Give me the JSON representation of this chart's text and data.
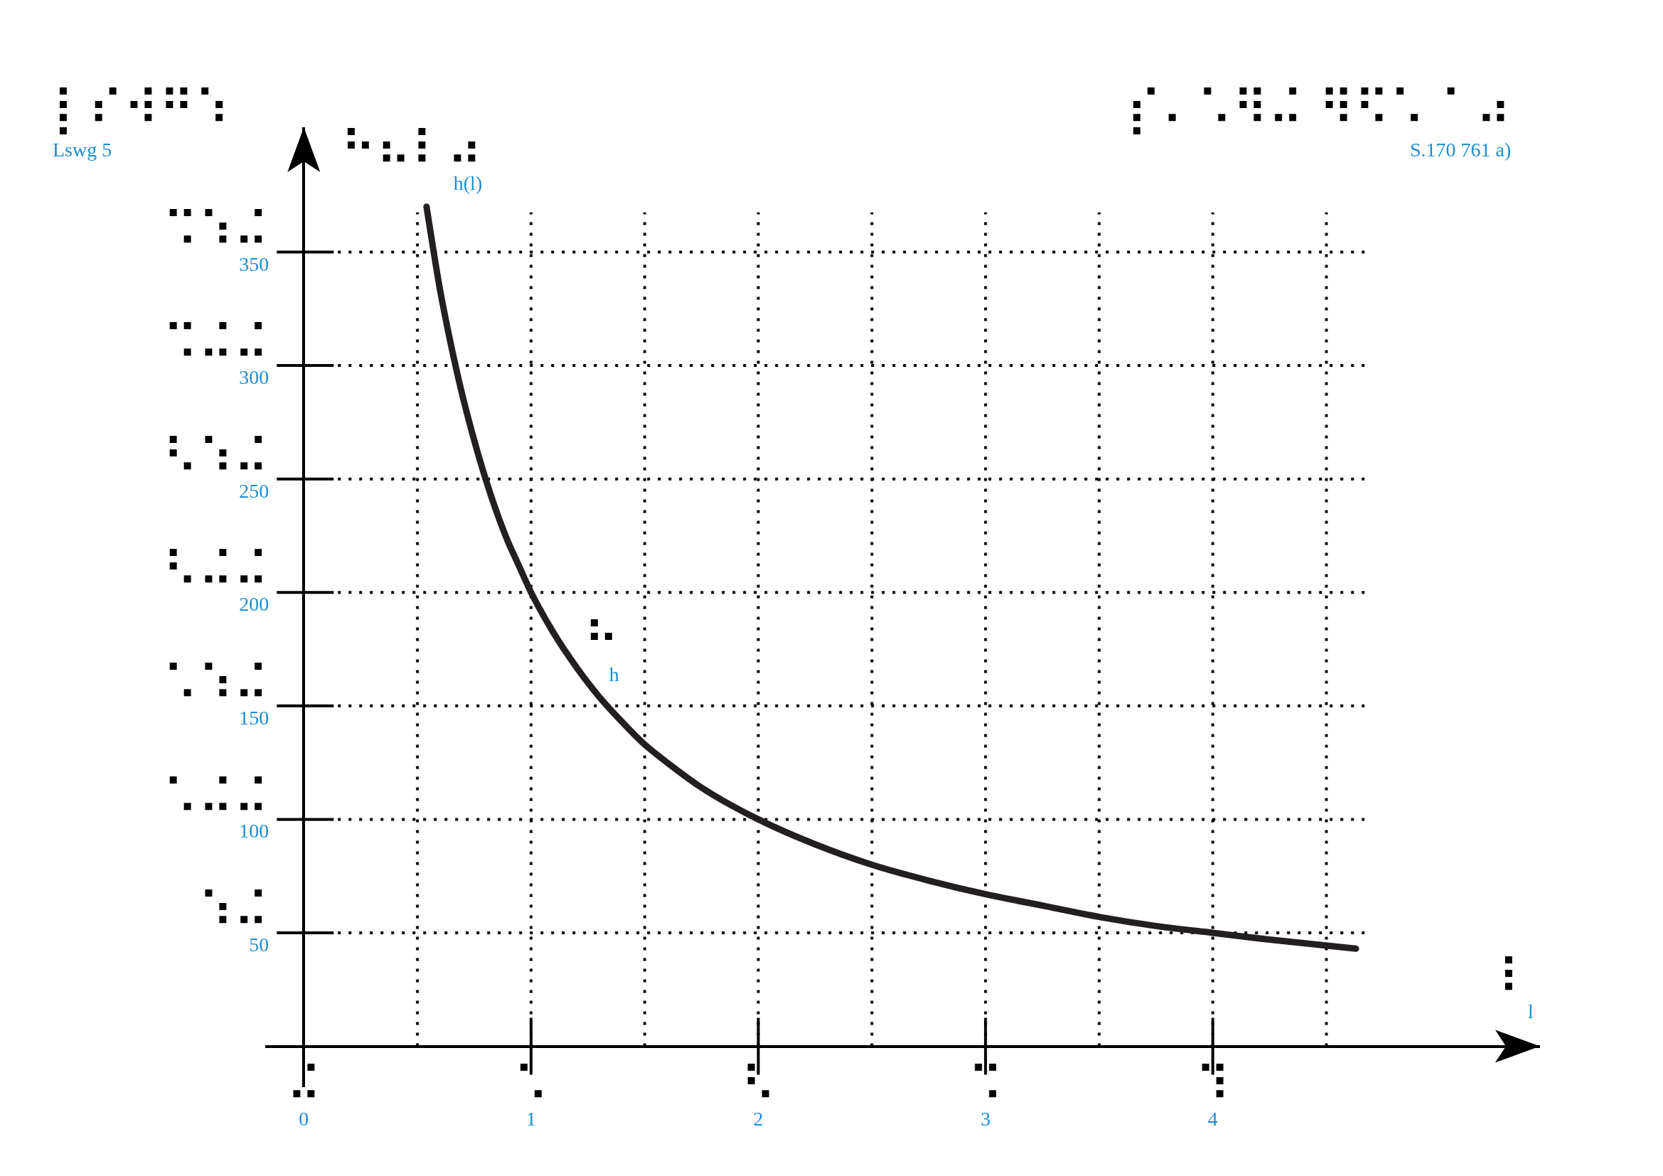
{
  "chart_data": {
    "type": "line",
    "annotations": [
      "⡇⠎⠺⠛⠱\nLswg 5",
      "⡎⠄⠡⠻⠬ ⠻⠫⠡ ⠁⠴\nS.170 761 a)"
    ],
    "xlabel": "⠇\nl",
    "ylabel": "⠓⠦⠇⠴\nh(l)",
    "x": [
      0.54,
      0.57,
      0.6,
      0.65,
      0.7,
      0.75,
      0.8,
      0.85,
      0.9,
      0.95,
      1,
      1.1,
      1.2,
      1.3,
      1.4,
      1.5,
      1.75,
      2,
      2.25,
      2.5,
      2.75,
      3,
      3.25,
      3.5,
      3.75,
      4,
      4.25,
      4.63
    ],
    "series": [
      {
        "name": "⠓\nh",
        "color": "#231f20",
        "values": [
          370,
          351,
          333,
          308,
          286,
          267,
          250,
          235,
          222,
          211,
          200,
          182,
          167,
          154,
          143,
          133,
          114,
          100,
          89,
          80,
          73,
          67,
          62,
          57,
          53,
          50,
          47,
          43
        ]
      }
    ],
    "xlim": [
      -0.17,
      5.44
    ],
    "ylim": [
      -18,
      405
    ],
    "xticks": [
      {
        "value": 0,
        "label": "⠬\n0"
      },
      {
        "value": 0.5,
        "label": null
      },
      {
        "value": 1,
        "label": "⠡\n1"
      },
      {
        "value": 1.5,
        "label": null
      },
      {
        "value": 2,
        "label": "⠣\n2"
      },
      {
        "value": 2.5,
        "label": null
      },
      {
        "value": 3,
        "label": "⠩\n3"
      },
      {
        "value": 3.5,
        "label": null
      },
      {
        "value": 4,
        "label": "⠹\n4"
      },
      {
        "value": 4.5,
        "label": null
      }
    ],
    "yticks": [
      {
        "value": 50,
        "label": "⠱⠬\n50"
      },
      {
        "value": 100,
        "label": "⠡⠬⠬\n100"
      },
      {
        "value": 150,
        "label": "⠡⠱⠬\n150"
      },
      {
        "value": 200,
        "label": "⠣⠬⠬\n200"
      },
      {
        "value": 250,
        "label": "⠣⠱⠬\n250"
      },
      {
        "value": 300,
        "label": "⠩⠬⠬\n300"
      },
      {
        "value": 350,
        "label": "⠩⠱⠬\n350"
      }
    ],
    "grid": true,
    "legend": false,
    "marker": "none",
    "line_style": "solid"
  }
}
